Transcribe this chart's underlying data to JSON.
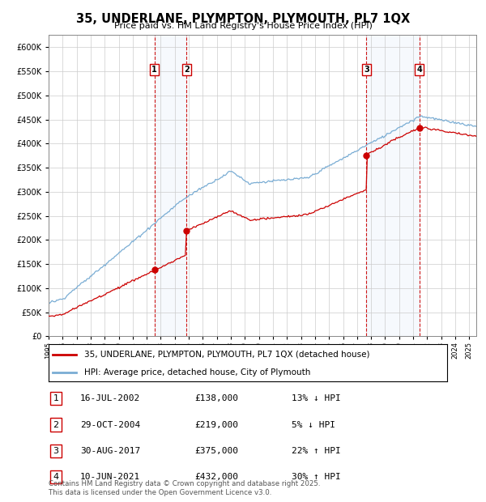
{
  "title": "35, UNDERLANE, PLYMPTON, PLYMOUTH, PL7 1QX",
  "subtitle": "Price paid vs. HM Land Registry's House Price Index (HPI)",
  "ylim": [
    0,
    625000
  ],
  "yticks": [
    0,
    50000,
    100000,
    150000,
    200000,
    250000,
    300000,
    350000,
    400000,
    450000,
    500000,
    550000,
    600000
  ],
  "background_color": "#ffffff",
  "plot_bg_color": "#ffffff",
  "grid_color": "#cccccc",
  "hpi_color": "#7aadd4",
  "price_color": "#cc0000",
  "transactions": [
    {
      "num": 1,
      "date_label": "16-JUL-2002",
      "date_x": 2002.54,
      "price": 138000,
      "pct": "13%",
      "dir": "↓"
    },
    {
      "num": 2,
      "date_label": "29-OCT-2004",
      "date_x": 2004.83,
      "price": 219000,
      "pct": "5%",
      "dir": "↓"
    },
    {
      "num": 3,
      "date_label": "30-AUG-2017",
      "date_x": 2017.67,
      "price": 375000,
      "pct": "22%",
      "dir": "↑"
    },
    {
      "num": 4,
      "date_label": "10-JUN-2021",
      "date_x": 2021.44,
      "price": 432000,
      "pct": "30%",
      "dir": "↑"
    }
  ],
  "legend_line1": "35, UNDERLANE, PLYMPTON, PLYMOUTH, PL7 1QX (detached house)",
  "legend_line2": "HPI: Average price, detached house, City of Plymouth",
  "table_rows": [
    [
      "1",
      "16-JUL-2002",
      "£138,000",
      "13% ↓ HPI"
    ],
    [
      "2",
      "29-OCT-2004",
      "£219,000",
      "5% ↓ HPI"
    ],
    [
      "3",
      "30-AUG-2017",
      "£375,000",
      "22% ↑ HPI"
    ],
    [
      "4",
      "10-JUN-2021",
      "£432,000",
      "30% ↑ HPI"
    ]
  ],
  "footer": "Contains HM Land Registry data © Crown copyright and database right 2025.\nThis data is licensed under the Open Government Licence v3.0.",
  "xmin": 1995,
  "xmax": 2025.5
}
